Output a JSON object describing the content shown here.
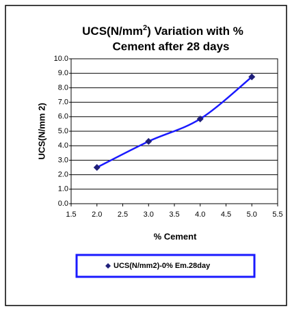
{
  "chart_data": {
    "type": "scatter",
    "title": [
      "UCS(N/mm",
      "2",
      ") Variation with %",
      "Cement after 28 days"
    ],
    "x_label": "% Cement",
    "y_label": "UCS(N/mm 2)",
    "series": [
      {
        "name": "UCS(N/mm2)-0% Em.28day",
        "color": "#1a1aff",
        "marker_color": "#1f1f7a",
        "x": [
          2.0,
          3.0,
          4.0,
          5.0
        ],
        "values": [
          2.5,
          4.3,
          5.85,
          8.75
        ]
      }
    ],
    "xlim": [
      1.5,
      5.5
    ],
    "xticks": [
      1.5,
      {
        "value": 2,
        "label": "2.0"
      },
      2.5,
      {
        "value": 3,
        "label": "3.0"
      },
      3.5,
      {
        "value": 4,
        "label": "4.0"
      },
      4.5,
      {
        "value": 5,
        "label": "5.0"
      },
      5.5
    ],
    "ylim": [
      0,
      10
    ],
    "yticks": [
      {
        "value": 0,
        "label": "0.0"
      },
      {
        "value": 1,
        "label": "1.0"
      },
      {
        "value": 2,
        "label": "2.0"
      },
      {
        "value": 3,
        "label": "3.0"
      },
      {
        "value": 4,
        "label": "4.0"
      },
      {
        "value": 5,
        "label": "5.0"
      },
      {
        "value": 6,
        "label": "6.0"
      },
      {
        "value": 7,
        "label": "7.0"
      },
      {
        "value": 8,
        "label": "8.0"
      },
      {
        "value": 9,
        "label": "9.0"
      },
      {
        "value": 10,
        "label": "10.0"
      }
    ],
    "grid": true,
    "legend": "bottom"
  }
}
